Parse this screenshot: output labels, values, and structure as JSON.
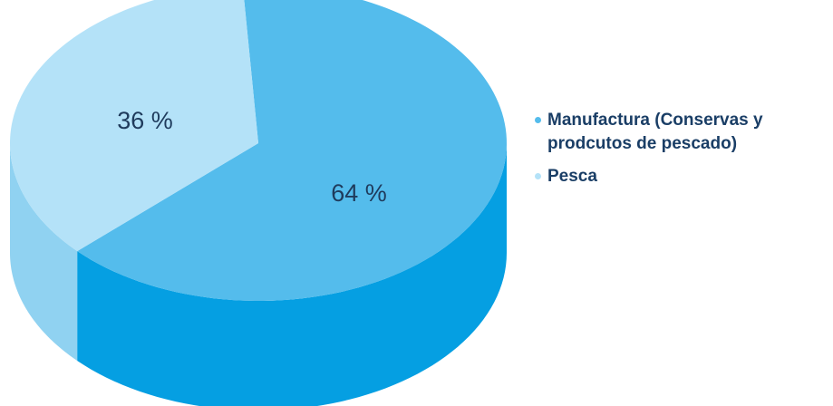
{
  "chart_data": {
    "type": "pie",
    "style": "3d",
    "labels": [
      "Manufactura (Conservas y prodcutos de pescado)",
      "Pesca"
    ],
    "values": [
      64,
      36
    ],
    "data_labels": [
      "64 %",
      "36 %"
    ],
    "colors": {
      "Manufactura (Conservas y prodcutos de pescado)": {
        "top": "#54bcec",
        "side": "#059fe2"
      },
      "Pesca": {
        "top": "#b4e2f8",
        "side": "#90d2f1"
      }
    },
    "legend": {
      "position": "right",
      "items": [
        {
          "label": "Manufactura (Conservas y prodcutos de pescado)",
          "color": "#54bcec"
        },
        {
          "label": "Pesca",
          "color": "#b4e2f8"
        }
      ]
    },
    "title": ""
  }
}
